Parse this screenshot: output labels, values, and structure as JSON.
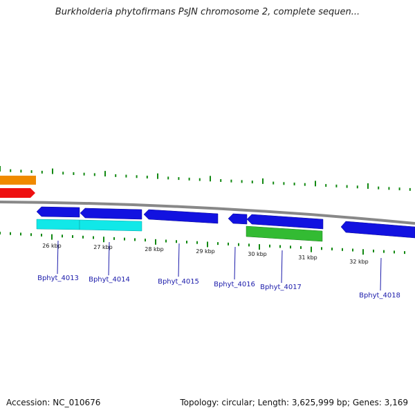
{
  "header": {
    "title": "Burkholderia phytofirmans PsJN chromosome 2, complete sequen..."
  },
  "footer": {
    "accession": "Accession: NC_010676",
    "summary": "Topology: circular; Length: 3,625,999 bp; Genes: 3,169"
  },
  "colors": {
    "backbone": "#888888",
    "tick": "#118811",
    "forward_gene": "#1212e0",
    "cds_cyan": "#11e8e8",
    "cds_green": "#33bb33",
    "offscreen_orange": "#f08a00",
    "offscreen_red": "#ee1111",
    "label_line": "#1a1aaa"
  },
  "ruler": {
    "tick_labels": [
      "26 kbp",
      "27 kbp",
      "28 kbp",
      "29 kbp",
      "30 kbp",
      "31 kbp",
      "32 kbp"
    ]
  },
  "genes": [
    {
      "label": "Bphyt_4013"
    },
    {
      "label": "Bphyt_4014"
    },
    {
      "label": "Bphyt_4015"
    },
    {
      "label": "Bphyt_4016"
    },
    {
      "label": "Bphyt_4017"
    },
    {
      "label": "Bphyt_4018"
    }
  ]
}
